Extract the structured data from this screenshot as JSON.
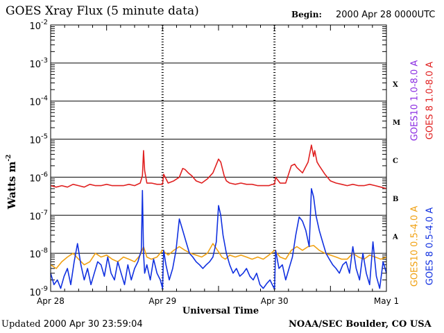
{
  "header": {
    "title": "GOES Xray Flux (5 minute data)",
    "begin_label": "Begin:",
    "begin_value": "2000 Apr 28 0000UTC"
  },
  "footer": {
    "updated_label": "Updated",
    "updated_value": "2000 Apr 30 23:59:04",
    "source": "NOAA/SEC Boulder, CO USA"
  },
  "colors": {
    "goes10_long": "#8a2be2",
    "goes8_long": "#e02020",
    "goes10_short": "#f0a010",
    "goes8_short": "#1030e0"
  },
  "chart_data": {
    "type": "line",
    "title": "GOES Xray Flux (5 minute data)",
    "xlabel": "Universal Time",
    "ylabel": "Watts m",
    "ylabel_superscript": "-2",
    "y_scale": "log",
    "ylim": [
      1e-09,
      0.01
    ],
    "y_ticks": [
      {
        "mantissa": "10",
        "exp": "-2",
        "value": 0.01
      },
      {
        "mantissa": "10",
        "exp": "-3",
        "value": 0.001
      },
      {
        "mantissa": "10",
        "exp": "-4",
        "value": 0.0001
      },
      {
        "mantissa": "10",
        "exp": "-5",
        "value": 1e-05
      },
      {
        "mantissa": "10",
        "exp": "-6",
        "value": 1e-06
      },
      {
        "mantissa": "10",
        "exp": "-7",
        "value": 1e-07
      },
      {
        "mantissa": "10",
        "exp": "-8",
        "value": 1e-08
      },
      {
        "mantissa": "10",
        "exp": "-9",
        "value": 1e-09
      }
    ],
    "x_unit": "days since 2000 Apr 28 00 UT",
    "xlim": [
      0,
      3
    ],
    "x_ticks": [
      {
        "label": "Apr 28",
        "value": 0
      },
      {
        "label": "Apr 29",
        "value": 1
      },
      {
        "label": "Apr 30",
        "value": 2
      },
      {
        "label": "May 1",
        "value": 3
      }
    ],
    "flare_classes": [
      {
        "label": "X",
        "value": 0.00028
      },
      {
        "label": "M",
        "value": 2.8e-05
      },
      {
        "label": "C",
        "value": 2.8e-06
      },
      {
        "label": "B",
        "value": 2.8e-07
      },
      {
        "label": "A",
        "value": 2.8e-08
      }
    ],
    "grid": true,
    "legend_right": [
      {
        "text": "GOES10 1.0-8.0 A",
        "color": "#8a2be2"
      },
      {
        "text": "GOES 8 1.0-8.0 A",
        "color": "#e02020"
      },
      {
        "text": "GOES10 0.5-4.0 A",
        "color": "#f0a010"
      },
      {
        "text": "GOES 8 0.5-4.0 A",
        "color": "#1030e0"
      }
    ],
    "series": [
      {
        "name": "GOES 8 1.0-8.0 A",
        "color": "#e02020",
        "x": [
          0.0,
          0.05,
          0.1,
          0.15,
          0.2,
          0.25,
          0.3,
          0.35,
          0.4,
          0.45,
          0.5,
          0.55,
          0.6,
          0.65,
          0.7,
          0.75,
          0.8,
          0.82,
          0.83,
          0.84,
          0.86,
          0.9,
          0.95,
          0.98,
          1.0,
          1.01,
          1.05,
          1.1,
          1.15,
          1.18,
          1.2,
          1.23,
          1.26,
          1.3,
          1.35,
          1.4,
          1.45,
          1.5,
          1.52,
          1.55,
          1.57,
          1.6,
          1.65,
          1.7,
          1.75,
          1.8,
          1.85,
          1.9,
          1.95,
          1.98,
          2.0,
          2.01,
          2.05,
          2.1,
          2.15,
          2.18,
          2.2,
          2.25,
          2.3,
          2.33,
          2.35,
          2.36,
          2.38,
          2.4,
          2.45,
          2.5,
          2.55,
          2.6,
          2.65,
          2.7,
          2.75,
          2.8,
          2.85,
          2.9,
          2.95,
          3.0
        ],
        "y": [
          6e-07,
          5.5e-07,
          6e-07,
          5.5e-07,
          6.5e-07,
          6e-07,
          5.5e-07,
          6.5e-07,
          6e-07,
          6e-07,
          6.5e-07,
          6e-07,
          6e-07,
          6e-07,
          6.5e-07,
          6e-07,
          7e-07,
          1.1e-06,
          5e-06,
          1.5e-06,
          7e-07,
          7e-07,
          6.5e-07,
          6.5e-07,
          6.5e-07,
          1.2e-06,
          7e-07,
          8e-07,
          1e-06,
          1.7e-06,
          1.6e-06,
          1.3e-06,
          1.1e-06,
          8e-07,
          7e-07,
          9e-07,
          1.3e-06,
          3e-06,
          2.5e-06,
          1.1e-06,
          8e-07,
          7e-07,
          6.5e-07,
          7e-07,
          6.5e-07,
          6.5e-07,
          6e-07,
          6e-07,
          6e-07,
          6.5e-07,
          6.5e-07,
          1e-06,
          7e-07,
          7e-07,
          2e-06,
          2.2e-06,
          1.8e-06,
          1.3e-06,
          2.5e-06,
          7e-06,
          3.5e-06,
          5e-06,
          2.5e-06,
          2e-06,
          1.2e-06,
          8e-07,
          7e-07,
          6.5e-07,
          6e-07,
          6.5e-07,
          6e-07,
          6e-07,
          6.5e-07,
          6e-07,
          5.5e-07,
          5e-07
        ]
      },
      {
        "name": "GOES10 0.5-4.0 A",
        "color": "#f0a010",
        "x": [
          0.0,
          0.05,
          0.1,
          0.15,
          0.2,
          0.25,
          0.3,
          0.35,
          0.4,
          0.45,
          0.5,
          0.55,
          0.6,
          0.65,
          0.7,
          0.75,
          0.8,
          0.83,
          0.86,
          0.9,
          0.95,
          1.0,
          1.05,
          1.1,
          1.15,
          1.2,
          1.25,
          1.3,
          1.35,
          1.4,
          1.45,
          1.5,
          1.53,
          1.56,
          1.6,
          1.65,
          1.7,
          1.75,
          1.8,
          1.85,
          1.9,
          1.95,
          2.0,
          2.05,
          2.1,
          2.15,
          2.2,
          2.25,
          2.3,
          2.35,
          2.4,
          2.45,
          2.5,
          2.55,
          2.6,
          2.65,
          2.7,
          2.75,
          2.8,
          2.85,
          2.9,
          2.95,
          3.0
        ],
        "y": [
          5e-09,
          4e-09,
          6e-09,
          8e-09,
          1e-08,
          7e-09,
          5e-09,
          6e-09,
          1e-08,
          8e-09,
          9e-09,
          7e-09,
          6e-09,
          8e-09,
          7e-09,
          6e-09,
          9e-09,
          1.5e-08,
          8e-09,
          7e-09,
          8e-09,
          1.2e-08,
          9e-09,
          1.2e-08,
          1.5e-08,
          1.2e-08,
          1e-08,
          9e-09,
          8e-09,
          1e-08,
          1.8e-08,
          1.1e-08,
          8e-09,
          7e-09,
          9e-09,
          8e-09,
          9e-09,
          8e-09,
          7e-09,
          8e-09,
          7e-09,
          9e-09,
          1.2e-08,
          8e-09,
          7e-09,
          1.2e-08,
          1.5e-08,
          1.2e-08,
          1.5e-08,
          1.6e-08,
          1.2e-08,
          1e-08,
          9e-09,
          8e-09,
          7e-09,
          7e-09,
          1e-08,
          8e-09,
          7e-09,
          9e-09,
          8e-09,
          7e-09,
          8e-09
        ]
      },
      {
        "name": "GOES 8 0.5-4.0 A",
        "color": "#1030e0",
        "x": [
          0.0,
          0.03,
          0.06,
          0.09,
          0.12,
          0.15,
          0.18,
          0.21,
          0.24,
          0.27,
          0.3,
          0.33,
          0.36,
          0.39,
          0.42,
          0.45,
          0.48,
          0.51,
          0.54,
          0.57,
          0.6,
          0.63,
          0.66,
          0.69,
          0.72,
          0.75,
          0.78,
          0.81,
          0.82,
          0.83,
          0.84,
          0.86,
          0.89,
          0.92,
          0.95,
          0.98,
          1.0,
          1.01,
          1.03,
          1.06,
          1.09,
          1.12,
          1.15,
          1.18,
          1.21,
          1.24,
          1.27,
          1.3,
          1.33,
          1.36,
          1.39,
          1.42,
          1.45,
          1.48,
          1.5,
          1.52,
          1.54,
          1.57,
          1.6,
          1.63,
          1.66,
          1.69,
          1.72,
          1.75,
          1.78,
          1.81,
          1.84,
          1.87,
          1.9,
          1.93,
          1.96,
          1.99,
          2.0,
          2.01,
          2.04,
          2.07,
          2.1,
          2.13,
          2.16,
          2.19,
          2.22,
          2.25,
          2.28,
          2.31,
          2.33,
          2.35,
          2.37,
          2.4,
          2.43,
          2.46,
          2.49,
          2.52,
          2.55,
          2.58,
          2.61,
          2.64,
          2.67,
          2.7,
          2.73,
          2.76,
          2.79,
          2.82,
          2.85,
          2.88,
          2.91,
          2.94,
          2.97,
          3.0
        ],
        "y": [
          3e-09,
          1.5e-09,
          2e-09,
          1.2e-09,
          2.5e-09,
          4e-09,
          1.5e-09,
          6e-09,
          1.8e-08,
          5e-09,
          2e-09,
          4e-09,
          1.5e-09,
          3e-09,
          6e-09,
          5e-09,
          2.5e-09,
          8e-09,
          3e-09,
          2e-09,
          6e-09,
          3e-09,
          1.5e-09,
          5e-09,
          2e-09,
          4e-09,
          6e-09,
          1.2e-08,
          4.5e-07,
          1e-08,
          3e-09,
          5e-09,
          2e-09,
          7e-09,
          3e-09,
          2e-09,
          1.2e-09,
          1.2e-08,
          5e-09,
          2e-09,
          4e-09,
          1.2e-08,
          8e-08,
          4e-08,
          2e-08,
          1e-08,
          8e-09,
          6e-09,
          5e-09,
          4e-09,
          5e-09,
          6e-09,
          8e-09,
          2e-08,
          1.8e-07,
          1e-07,
          3e-08,
          1e-08,
          5e-09,
          3e-09,
          4e-09,
          2.5e-09,
          3e-09,
          4e-09,
          2.5e-09,
          2e-09,
          3e-09,
          1.5e-09,
          1.2e-09,
          1.6e-09,
          2e-09,
          1.3e-09,
          1.2e-09,
          1.2e-08,
          4e-09,
          5e-09,
          2e-09,
          4e-09,
          8e-09,
          3e-08,
          9e-08,
          7e-08,
          4e-08,
          1.5e-08,
          5e-07,
          3e-07,
          1e-07,
          4e-08,
          2e-08,
          1e-08,
          7e-09,
          5e-09,
          4e-09,
          3e-09,
          5e-09,
          6e-09,
          3e-09,
          1.5e-08,
          4e-09,
          2e-09,
          1e-08,
          3e-09,
          1.5e-09,
          2e-08,
          2.5e-09,
          1.2e-09,
          6e-09,
          3e-09
        ]
      }
    ]
  }
}
